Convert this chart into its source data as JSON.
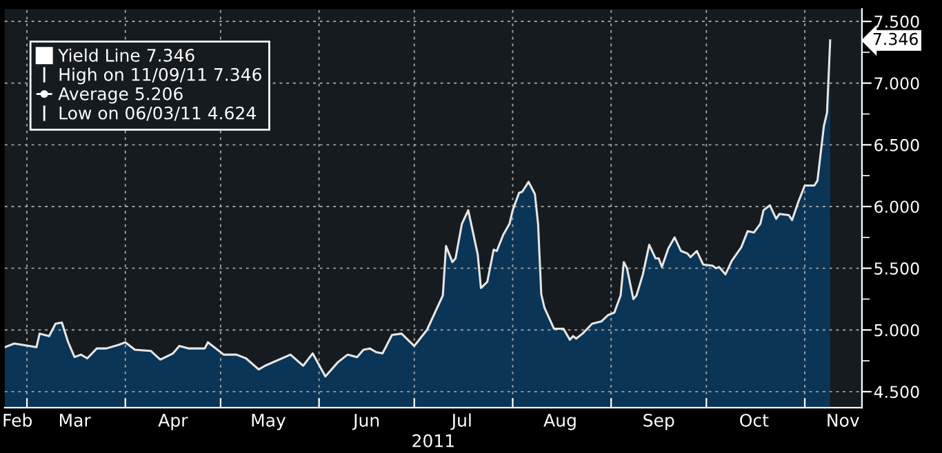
{
  "chart_data": {
    "type": "area",
    "xlabel": "2011",
    "x": [
      "2011-02-22",
      "2011-02-25",
      "2011-03-04",
      "2011-03-05",
      "2011-03-08",
      "2011-03-10",
      "2011-03-12",
      "2011-03-14",
      "2011-03-16",
      "2011-03-18",
      "2011-03-20",
      "2011-03-23",
      "2011-03-26",
      "2011-03-30",
      "2011-04-01",
      "2011-04-04",
      "2011-04-09",
      "2011-04-12",
      "2011-04-16",
      "2011-04-18",
      "2011-04-21",
      "2011-04-26",
      "2011-04-27",
      "2011-05-02",
      "2011-05-06",
      "2011-05-09",
      "2011-05-13",
      "2011-05-15",
      "2011-05-23",
      "2011-05-27",
      "2011-05-30",
      "2011-06-03",
      "2011-06-07",
      "2011-06-10",
      "2011-06-13",
      "2011-06-15",
      "2011-06-17",
      "2011-06-19",
      "2011-06-21",
      "2011-06-24",
      "2011-06-27",
      "2011-07-01",
      "2011-07-05",
      "2011-07-10",
      "2011-07-11",
      "2011-07-13",
      "2011-07-14",
      "2011-07-16",
      "2011-07-18",
      "2011-07-21",
      "2011-07-22",
      "2011-07-24",
      "2011-07-26",
      "2011-07-27",
      "2011-07-29",
      "2011-07-31",
      "2011-08-01",
      "2011-08-03",
      "2011-08-04",
      "2011-08-06",
      "2011-08-08",
      "2011-08-09",
      "2011-08-10",
      "2011-08-11",
      "2011-08-14",
      "2011-08-17",
      "2011-08-19",
      "2011-08-20",
      "2011-08-21",
      "2011-08-23",
      "2011-08-26",
      "2011-08-29",
      "2011-08-31",
      "2011-09-02",
      "2011-09-04",
      "2011-09-05",
      "2011-09-06",
      "2011-09-08",
      "2011-09-09",
      "2011-09-11",
      "2011-09-13",
      "2011-09-15",
      "2011-09-16",
      "2011-09-17",
      "2011-09-19",
      "2011-09-21",
      "2011-09-23",
      "2011-09-25",
      "2011-09-26",
      "2011-09-28",
      "2011-09-30",
      "2011-10-03",
      "2011-10-04",
      "2011-10-05",
      "2011-10-07",
      "2011-10-09",
      "2011-10-12",
      "2011-10-14",
      "2011-10-16",
      "2011-10-18",
      "2011-10-19",
      "2011-10-21",
      "2011-10-23",
      "2011-10-24",
      "2011-10-27",
      "2011-10-28",
      "2011-10-30",
      "2011-11-01",
      "2011-11-04",
      "2011-11-05",
      "2011-11-07",
      "2011-11-08",
      "2011-11-09"
    ],
    "series": [
      {
        "name": "Yield Line 7.346",
        "color": "#e6e6e6",
        "values": [
          4.86,
          4.89,
          4.86,
          4.97,
          4.95,
          5.05,
          5.06,
          4.9,
          4.78,
          4.8,
          4.77,
          4.85,
          4.85,
          4.88,
          4.9,
          4.84,
          4.83,
          4.76,
          4.81,
          4.87,
          4.85,
          4.85,
          4.9,
          4.8,
          4.8,
          4.77,
          4.68,
          4.71,
          4.8,
          4.71,
          4.81,
          4.624,
          4.74,
          4.8,
          4.78,
          4.84,
          4.85,
          4.82,
          4.81,
          4.96,
          4.97,
          4.87,
          5.0,
          5.28,
          5.68,
          5.55,
          5.58,
          5.86,
          5.97,
          5.61,
          5.34,
          5.39,
          5.65,
          5.64,
          5.77,
          5.86,
          5.97,
          6.11,
          6.12,
          6.2,
          6.1,
          5.86,
          5.29,
          5.18,
          5.01,
          5.01,
          4.92,
          4.95,
          4.93,
          4.97,
          5.05,
          5.07,
          5.12,
          5.14,
          5.28,
          5.55,
          5.5,
          5.25,
          5.28,
          5.45,
          5.69,
          5.58,
          5.58,
          5.51,
          5.66,
          5.75,
          5.64,
          5.62,
          5.59,
          5.64,
          5.53,
          5.52,
          5.5,
          5.51,
          5.45,
          5.56,
          5.67,
          5.8,
          5.79,
          5.86,
          5.97,
          6.01,
          5.9,
          5.94,
          5.93,
          5.89,
          6.04,
          6.17,
          6.17,
          6.21,
          6.65,
          6.76,
          7.346
        ]
      }
    ],
    "xlim": [
      "2011-02-22",
      "2011-11-19"
    ],
    "xticks": [
      {
        "value": "2011-03-01",
        "label": null
      },
      {
        "value": "2011-04-01",
        "label": null
      },
      {
        "value": "2011-05-01",
        "label": null
      },
      {
        "value": "2011-06-01",
        "label": null
      },
      {
        "value": "2011-07-01",
        "label": null
      },
      {
        "value": "2011-08-01",
        "label": null
      },
      {
        "value": "2011-09-01",
        "label": null
      },
      {
        "value": "2011-10-01",
        "label": null
      },
      {
        "value": "2011-11-01",
        "label": null
      },
      {
        "value": "2011-02-26",
        "label": "Feb"
      },
      {
        "value": "2011-03-16",
        "label": "Mar"
      },
      {
        "value": "2011-04-16",
        "label": "Apr"
      },
      {
        "value": "2011-05-16",
        "label": "May"
      },
      {
        "value": "2011-06-16",
        "label": "Jun"
      },
      {
        "value": "2011-07-16",
        "label": "Jul"
      },
      {
        "value": "2011-08-16",
        "label": "Aug"
      },
      {
        "value": "2011-09-16",
        "label": "Sep"
      },
      {
        "value": "2011-10-16",
        "label": "Oct"
      },
      {
        "value": "2011-11-13",
        "label": "Nov"
      }
    ],
    "ylim": [
      4.37,
      7.6
    ],
    "yticks": [
      {
        "value": 4.5,
        "label": "4.500"
      },
      {
        "value": 4.75,
        "label": null
      },
      {
        "value": 5.0,
        "label": "5.000"
      },
      {
        "value": 5.25,
        "label": null
      },
      {
        "value": 5.5,
        "label": "5.500"
      },
      {
        "value": 5.75,
        "label": null
      },
      {
        "value": 6.0,
        "label": "6.000"
      },
      {
        "value": 6.25,
        "label": null
      },
      {
        "value": 6.5,
        "label": "6.500"
      },
      {
        "value": 6.75,
        "label": null
      },
      {
        "value": 7.0,
        "label": "7.000"
      },
      {
        "value": 7.25,
        "label": null
      },
      {
        "value": 7.5,
        "label": "7.500"
      }
    ],
    "annotations": [
      {
        "text": "7.346",
        "x": "2011-11-09",
        "y": 7.346
      },
      "High on 11/09/11 7.346",
      "Average 5.206",
      "Low on 06/03/11 4.624"
    ],
    "grid": true,
    "legend": "top left"
  }
}
